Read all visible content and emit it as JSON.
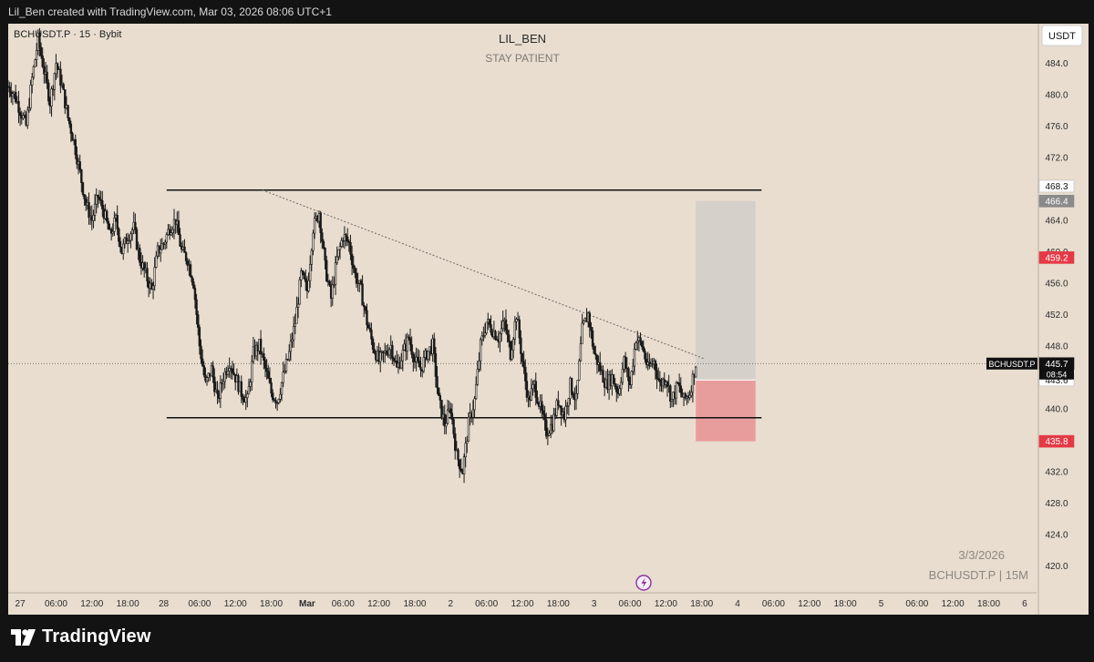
{
  "header": {
    "attribution": "Lil_Ben created with TradingView.com, Mar 03, 2026 08:06 UTC+1"
  },
  "chart": {
    "symbol_info": "BCHUSDT.P · 15 · Bybit",
    "title": "LIL_BEN",
    "subtitle": "STAY PATIENT",
    "currency_button": "USDT",
    "watermark_date": "3/3/2026",
    "watermark_symbol": "BCHUSDT.P | 15M"
  },
  "footer": {
    "brand": "TradingView"
  },
  "colors": {
    "background": "#e8ddcf",
    "candle": "#1a1a1a",
    "stop_zone": "#e8999a",
    "target_zone": "#d5cfca",
    "loss_label": "#e53945",
    "gray_label": "#8a8a8a",
    "dark_label": "#111111"
  },
  "chart_data": {
    "type": "candlestick",
    "series_name": "BCHUSDT.P",
    "timeframe": "15",
    "ylim": [
      416.5,
      489.0
    ],
    "y_ticks": [
      420.0,
      424.0,
      428.0,
      432.0,
      436.0,
      440.0,
      444.0,
      448.0,
      452.0,
      456.0,
      460.0,
      464.0,
      468.0,
      472.0,
      476.0,
      480.0,
      484.0
    ],
    "x_ticks": [
      "27",
      "06:00",
      "12:00",
      "18:00",
      "28",
      "06:00",
      "12:00",
      "18:00",
      "Mar",
      "06:00",
      "12:00",
      "18:00",
      "2",
      "06:00",
      "12:00",
      "18:00",
      "3",
      "06:00",
      "12:00",
      "18:00",
      "4",
      "06:00",
      "12:00",
      "18:00",
      "5",
      "06:00",
      "12:00",
      "18:00",
      "6"
    ],
    "x_tick_hours": [
      0,
      6,
      12,
      18,
      24,
      30,
      36,
      42,
      48,
      54,
      60,
      66,
      72,
      78,
      84,
      90,
      96,
      102,
      108,
      114,
      120,
      126,
      132,
      138,
      144,
      150,
      156,
      162,
      168
    ],
    "x_range_hours": [
      -2,
      170
    ],
    "price_path": [
      [
        -2,
        481
      ],
      [
        -1,
        480
      ],
      [
        0,
        478
      ],
      [
        1,
        476
      ],
      [
        2,
        482
      ],
      [
        3,
        487
      ],
      [
        4,
        483
      ],
      [
        5,
        479
      ],
      [
        6,
        484
      ],
      [
        7,
        481
      ],
      [
        8,
        477
      ],
      [
        9,
        474
      ],
      [
        10,
        470
      ],
      [
        11,
        466
      ],
      [
        12,
        464
      ],
      [
        13,
        467
      ],
      [
        14,
        465
      ],
      [
        15,
        462
      ],
      [
        16,
        464
      ],
      [
        17,
        460
      ],
      [
        18,
        462
      ],
      [
        19,
        463
      ],
      [
        20,
        459
      ],
      [
        21,
        457
      ],
      [
        22,
        455
      ],
      [
        23,
        460
      ],
      [
        24,
        461
      ],
      [
        25,
        463
      ],
      [
        26,
        464
      ],
      [
        27,
        460
      ],
      [
        28,
        459
      ],
      [
        29,
        456
      ],
      [
        30,
        448
      ],
      [
        31,
        443
      ],
      [
        32,
        445
      ],
      [
        33,
        441
      ],
      [
        34,
        444
      ],
      [
        35,
        446
      ],
      [
        36,
        444
      ],
      [
        37,
        442
      ],
      [
        38,
        441
      ],
      [
        39,
        447
      ],
      [
        40,
        448
      ],
      [
        41,
        445
      ],
      [
        42,
        442
      ],
      [
        43,
        441
      ],
      [
        44,
        444
      ],
      [
        45,
        447
      ],
      [
        46,
        451
      ],
      [
        47,
        457
      ],
      [
        48,
        455
      ],
      [
        49,
        463
      ],
      [
        50,
        465
      ],
      [
        51,
        458
      ],
      [
        52,
        454
      ],
      [
        53,
        459
      ],
      [
        54,
        462
      ],
      [
        55,
        461
      ],
      [
        56,
        457
      ],
      [
        57,
        455
      ],
      [
        58,
        451
      ],
      [
        59,
        448
      ],
      [
        60,
        446
      ],
      [
        61,
        447
      ],
      [
        62,
        448
      ],
      [
        63,
        445
      ],
      [
        64,
        447
      ],
      [
        65,
        449
      ],
      [
        66,
        446
      ],
      [
        67,
        445
      ],
      [
        68,
        447
      ],
      [
        69,
        448
      ],
      [
        70,
        441
      ],
      [
        71,
        438
      ],
      [
        72,
        440
      ],
      [
        73,
        434
      ],
      [
        74,
        432
      ],
      [
        75,
        438
      ],
      [
        76,
        441
      ],
      [
        77,
        448
      ],
      [
        78,
        451
      ],
      [
        79,
        450
      ],
      [
        80,
        449
      ],
      [
        81,
        451
      ],
      [
        82,
        447
      ],
      [
        83,
        452
      ],
      [
        84,
        446
      ],
      [
        85,
        441
      ],
      [
        86,
        443
      ],
      [
        87,
        440
      ],
      [
        88,
        437
      ],
      [
        89,
        438
      ],
      [
        90,
        441
      ],
      [
        91,
        439
      ],
      [
        92,
        443
      ],
      [
        93,
        441
      ],
      [
        94,
        450
      ],
      [
        95,
        452
      ],
      [
        96,
        447
      ],
      [
        97,
        445
      ],
      [
        98,
        443
      ],
      [
        99,
        444
      ],
      [
        100,
        442
      ],
      [
        101,
        446
      ],
      [
        102,
        443
      ],
      [
        103,
        449
      ],
      [
        104,
        448
      ],
      [
        105,
        445
      ],
      [
        106,
        446
      ],
      [
        107,
        443
      ],
      [
        108,
        444
      ],
      [
        109,
        441
      ],
      [
        110,
        443
      ],
      [
        111,
        441
      ],
      [
        112,
        442
      ],
      [
        113,
        445.7
      ]
    ],
    "annotations": {
      "upper_resistance": {
        "price": 467.8,
        "x_start_hour": 24.5,
        "x_end_hour": 124
      },
      "lower_support": {
        "price": 438.8,
        "x_start_hour": 24.5,
        "x_end_hour": 124
      },
      "descending_trendline": {
        "from": {
          "hour": 40.5,
          "price": 467.8
        },
        "to": {
          "hour": 114.5,
          "price": 446.3
        }
      },
      "position": {
        "start_hour": 113,
        "end_hour": 123,
        "entry": 443.6,
        "target": 466.4,
        "stop": 435.8
      }
    },
    "price_labels": [
      {
        "price": 468.3,
        "text": "468.3",
        "style": "white"
      },
      {
        "price": 466.4,
        "text": "466.4",
        "style": "gray"
      },
      {
        "price": 459.2,
        "text": "459.2",
        "style": "red"
      },
      {
        "price": 445.7,
        "text": "445.7",
        "style": "dark"
      },
      {
        "price": 443.6,
        "text": "443.6",
        "style": "white"
      },
      {
        "price": 435.8,
        "text": "435.8",
        "style": "red"
      }
    ],
    "last_price_tag": {
      "price": 445.7,
      "symbol": "BCHUSDT.P",
      "value": "445.7",
      "countdown": "08:54"
    }
  }
}
